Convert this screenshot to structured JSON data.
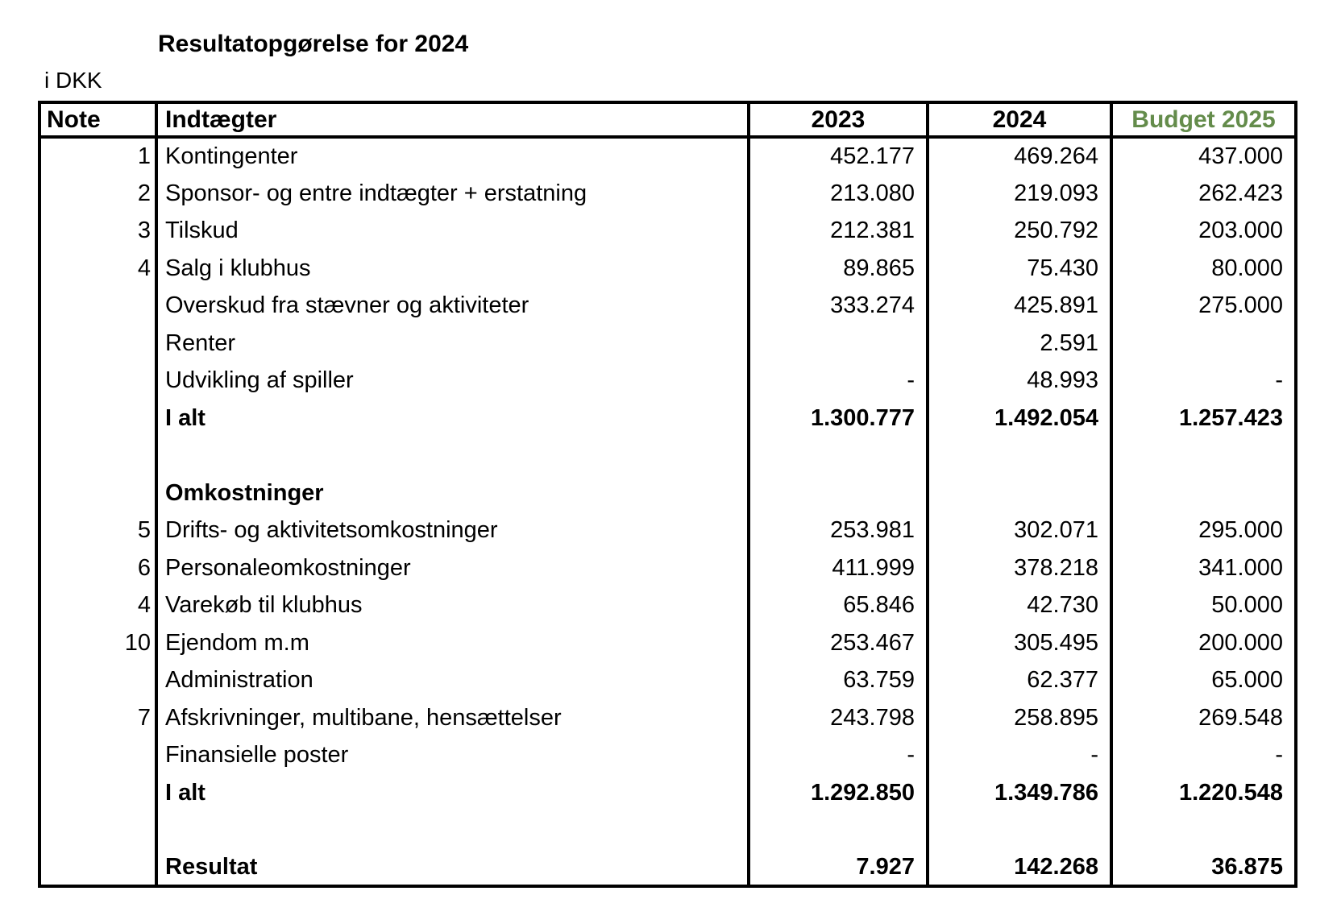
{
  "title": "Resultatopgørelse for 2024",
  "currency_note": "i DKK",
  "table": {
    "budget_header_color": "#648C4B",
    "headers": {
      "note": "Note",
      "label": "Indtægter",
      "y2023": "2023",
      "y2024": "2024",
      "budget": "Budget 2025"
    },
    "rows": [
      {
        "note": "1",
        "label": "Kontingenter",
        "y2023": "452.177",
        "y2024": "469.264",
        "budget": "437.000",
        "bold": false
      },
      {
        "note": "2",
        "label": "Sponsor- og entre indtægter + erstatning",
        "y2023": "213.080",
        "y2024": "219.093",
        "budget": "262.423",
        "bold": false
      },
      {
        "note": "3",
        "label": "Tilskud",
        "y2023": "212.381",
        "y2024": "250.792",
        "budget": "203.000",
        "bold": false
      },
      {
        "note": "4",
        "label": "Salg i klubhus",
        "y2023": "89.865",
        "y2024": "75.430",
        "budget": "80.000",
        "bold": false
      },
      {
        "note": "",
        "label": "Overskud fra stævner og aktiviteter",
        "y2023": "333.274",
        "y2024": "425.891",
        "budget": "275.000",
        "bold": false
      },
      {
        "note": "",
        "label": "Renter",
        "y2023": "",
        "y2024": "2.591",
        "budget": "",
        "bold": false
      },
      {
        "note": "",
        "label": "Udvikling af spiller",
        "y2023": "-",
        "y2024": "48.993",
        "budget": "-",
        "bold": false
      },
      {
        "note": "",
        "label": "I alt",
        "y2023": "1.300.777",
        "y2024": "1.492.054",
        "budget": "1.257.423",
        "bold": true
      },
      {
        "note": "",
        "label": "",
        "y2023": "",
        "y2024": "",
        "budget": "",
        "bold": false
      },
      {
        "note": "",
        "label": "Omkostninger",
        "y2023": "",
        "y2024": "",
        "budget": "",
        "bold": true
      },
      {
        "note": "5",
        "label": "Drifts- og aktivitetsomkostninger",
        "y2023": "253.981",
        "y2024": "302.071",
        "budget": "295.000",
        "bold": false
      },
      {
        "note": "6",
        "label": "Personaleomkostninger",
        "y2023": "411.999",
        "y2024": "378.218",
        "budget": "341.000",
        "bold": false
      },
      {
        "note": "4",
        "label": "Varekøb til klubhus",
        "y2023": "65.846",
        "y2024": "42.730",
        "budget": "50.000",
        "bold": false
      },
      {
        "note": "10",
        "label": "Ejendom m.m",
        "y2023": "253.467",
        "y2024": "305.495",
        "budget": "200.000",
        "bold": false
      },
      {
        "note": "",
        "label": "Administration",
        "y2023": "63.759",
        "y2024": "62.377",
        "budget": "65.000",
        "bold": false
      },
      {
        "note": "7",
        "label": "Afskrivninger, multibane, hensættelser",
        "y2023": "243.798",
        "y2024": "258.895",
        "budget": "269.548",
        "bold": false
      },
      {
        "note": "",
        "label": "Finansielle poster",
        "y2023": "-",
        "y2024": "-",
        "budget": "-",
        "bold": false
      },
      {
        "note": "",
        "label": "I alt",
        "y2023": "1.292.850",
        "y2024": "1.349.786",
        "budget": "1.220.548",
        "bold": true
      },
      {
        "note": "",
        "label": "",
        "y2023": "",
        "y2024": "",
        "budget": "",
        "bold": false
      },
      {
        "note": "",
        "label": "Resultat",
        "y2023": "7.927",
        "y2024": "142.268",
        "budget": "36.875",
        "bold": true
      }
    ]
  }
}
